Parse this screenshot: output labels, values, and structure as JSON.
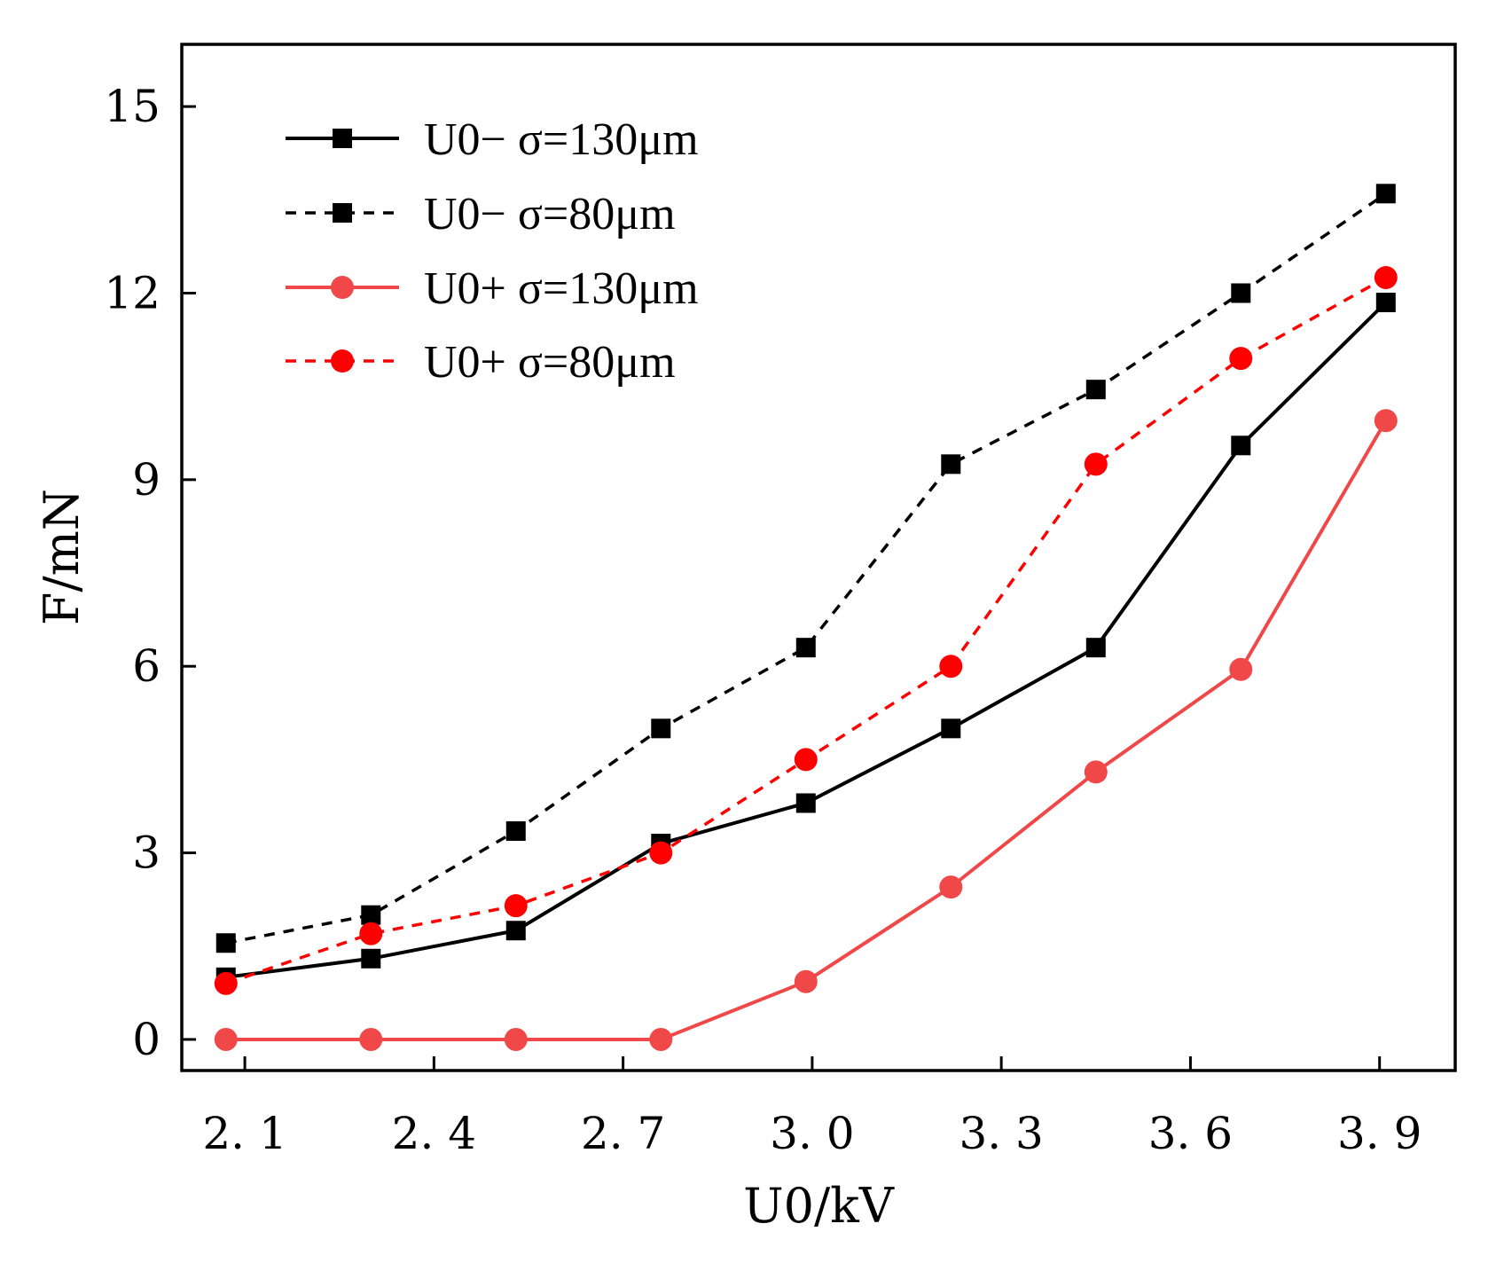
{
  "chart_data": {
    "type": "line",
    "xlabel": "U0/kV",
    "ylabel": "F/mN",
    "xlim": [
      2.0,
      4.02
    ],
    "ylim": [
      -0.5,
      16.0
    ],
    "xticks": [
      2.1,
      2.4,
      2.7,
      3.0,
      3.3,
      3.6,
      3.9
    ],
    "xtick_labels": [
      "2. 1",
      "2. 4",
      "2. 7",
      "3. 0",
      "3. 3",
      "3. 6",
      "3. 9"
    ],
    "yticks": [
      0,
      3,
      6,
      9,
      12,
      15
    ],
    "ytick_labels": [
      "0",
      "3",
      "6",
      "9",
      "12",
      "15"
    ],
    "grid": false,
    "legend_position": "top-left",
    "x": [
      2.07,
      2.3,
      2.53,
      2.76,
      2.99,
      3.22,
      3.45,
      3.68,
      3.91
    ],
    "series": [
      {
        "name": "U0−  σ=130μm",
        "color": "#000000",
        "marker": "square",
        "dashed": false,
        "values": [
          1.0,
          1.3,
          1.75,
          3.15,
          3.8,
          5.0,
          6.3,
          9.55,
          11.85
        ]
      },
      {
        "name": "U0−  σ=80μm",
        "color": "#000000",
        "marker": "square",
        "dashed": true,
        "values": [
          1.55,
          2.0,
          3.35,
          5.0,
          6.3,
          9.25,
          10.45,
          12.0,
          13.6
        ]
      },
      {
        "name": "U0+  σ=130μm",
        "color": "#f04848",
        "marker": "circle",
        "dashed": false,
        "values": [
          0.0,
          0.0,
          0.0,
          0.0,
          0.93,
          2.45,
          4.3,
          5.95,
          9.95
        ]
      },
      {
        "name": "U0+  σ=80μm",
        "color": "#ff0000",
        "marker": "circle",
        "dashed": true,
        "values": [
          0.9,
          1.7,
          2.15,
          3.0,
          4.5,
          6.0,
          9.25,
          10.95,
          12.25
        ]
      }
    ]
  }
}
